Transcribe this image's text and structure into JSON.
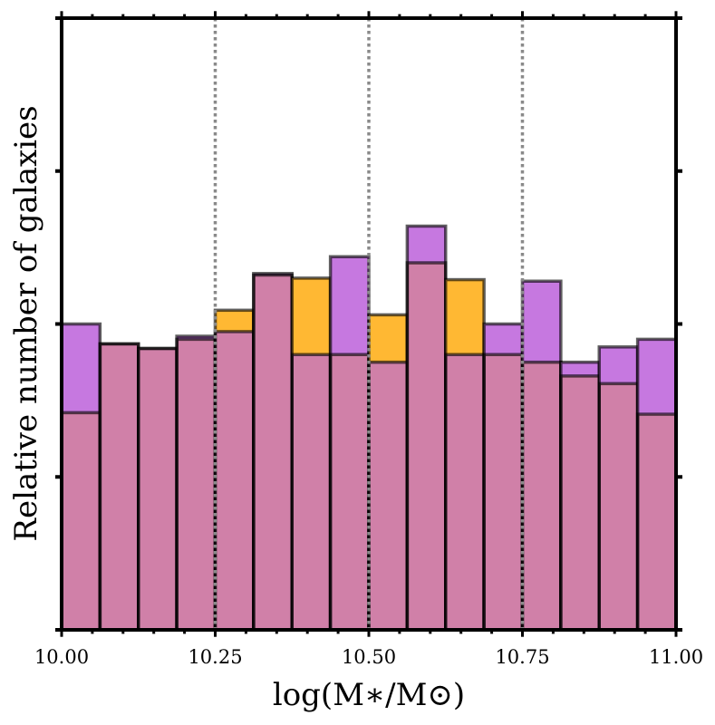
{
  "chart_data": {
    "type": "bar",
    "subtype": "overlaid-histogram",
    "xlabel": "log(M∗/M⊙)",
    "ylabel": "Relative number of  galaxies",
    "xlim": [
      10.0,
      11.0
    ],
    "ylim": [
      0,
      4
    ],
    "xticks": [
      "10.00",
      "10.25",
      "10.50",
      "10.75",
      "11.00"
    ],
    "xtick_values": [
      10.0,
      10.25,
      10.5,
      10.75,
      11.0
    ],
    "yticks_unlabeled": [
      0,
      1,
      2,
      3,
      4
    ],
    "reference_lines": [
      10.25,
      10.5,
      10.75
    ],
    "bin_edges": [
      10.0,
      10.0625,
      10.125,
      10.1875,
      10.25,
      10.3125,
      10.375,
      10.4375,
      10.5,
      10.5625,
      10.625,
      10.6875,
      10.75,
      10.8125,
      10.875,
      10.9375,
      11.0
    ],
    "series": [
      {
        "name": "orange",
        "color": "#FFB833",
        "values": [
          1.42,
          1.87,
          1.84,
          1.9,
          2.09,
          2.32,
          2.3,
          1.8,
          2.06,
          2.4,
          2.29,
          1.8,
          1.75,
          1.66,
          1.61,
          1.41
        ]
      },
      {
        "name": "purple",
        "color": "#C678E0",
        "values": [
          2.0,
          1.87,
          1.84,
          1.92,
          1.95,
          2.33,
          1.8,
          2.44,
          1.75,
          2.64,
          1.8,
          2.0,
          2.28,
          1.75,
          1.85,
          1.9
        ]
      }
    ],
    "overlap_color": "#D080A8"
  }
}
